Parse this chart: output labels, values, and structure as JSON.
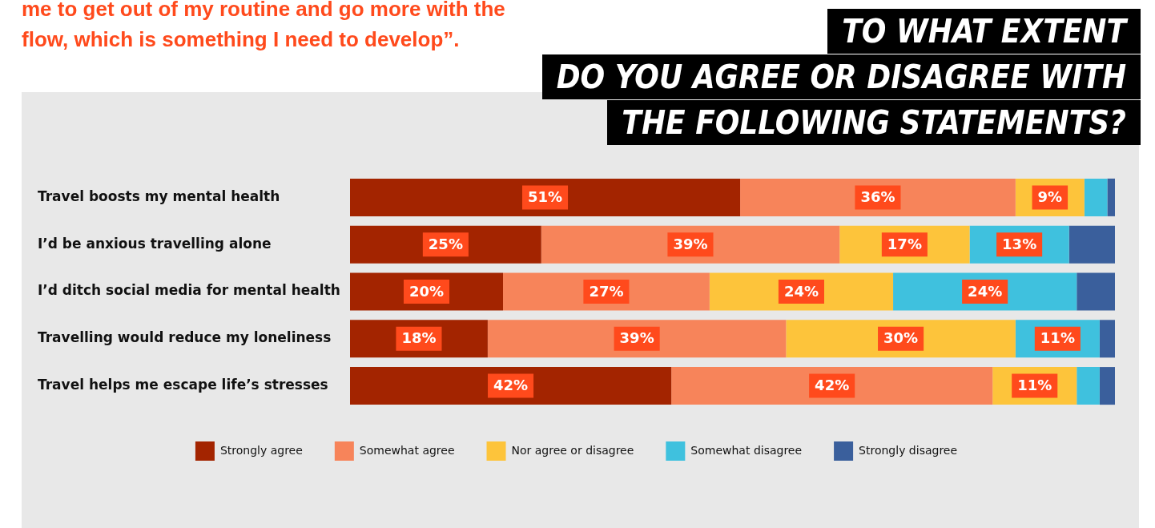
{
  "chart_data": {
    "type": "bar",
    "orientation": "horizontal",
    "stacked": true,
    "title": "TO WHAT EXTENT\nDO YOU AGREE OR DISAGREE WITH\nTHE FOLLOWING STATEMENTS?",
    "annotations": [
      "me to get out of my routine and go more with the\nflow, which is something I need to develop”."
    ],
    "categories": [
      "Travel boosts my mental health",
      "I’d be anxious travelling alone",
      "I’d ditch social media for mental health",
      "Travelling would reduce my loneliness",
      "Travel helps me escape life’s stresses"
    ],
    "xlim": [
      0,
      100
    ],
    "tick_labels": "y",
    "legend": "bottom",
    "series": [
      {
        "name": "Strongly agree",
        "color": "#a32400",
        "values": [
          51,
          25,
          20,
          18,
          42
        ],
        "value_labels": [
          "51%",
          "25%",
          "20%",
          "18%",
          "42%"
        ]
      },
      {
        "name": "Somewhat agree",
        "color": "#f7845a",
        "values": [
          36,
          39,
          27,
          39,
          42
        ],
        "value_labels": [
          "36%",
          "39%",
          "27%",
          "39%",
          "42%"
        ]
      },
      {
        "name": "Nor agree or disagree",
        "color": "#fdc43b",
        "values": [
          9,
          17,
          24,
          30,
          11
        ],
        "value_labels": [
          "9%",
          "17%",
          "24%",
          "30%",
          "11%"
        ]
      },
      {
        "name": "Somewhat disagree",
        "color": "#3fc1de",
        "values": [
          3,
          13,
          24,
          11,
          3
        ],
        "value_labels": [
          null,
          "13%",
          "24%",
          "11%",
          null
        ]
      },
      {
        "name": "Strongly disagree",
        "color": "#3a5f9c",
        "values": [
          1,
          6,
          5,
          2,
          2
        ],
        "value_labels": [
          null,
          null,
          null,
          null,
          null
        ]
      }
    ]
  }
}
